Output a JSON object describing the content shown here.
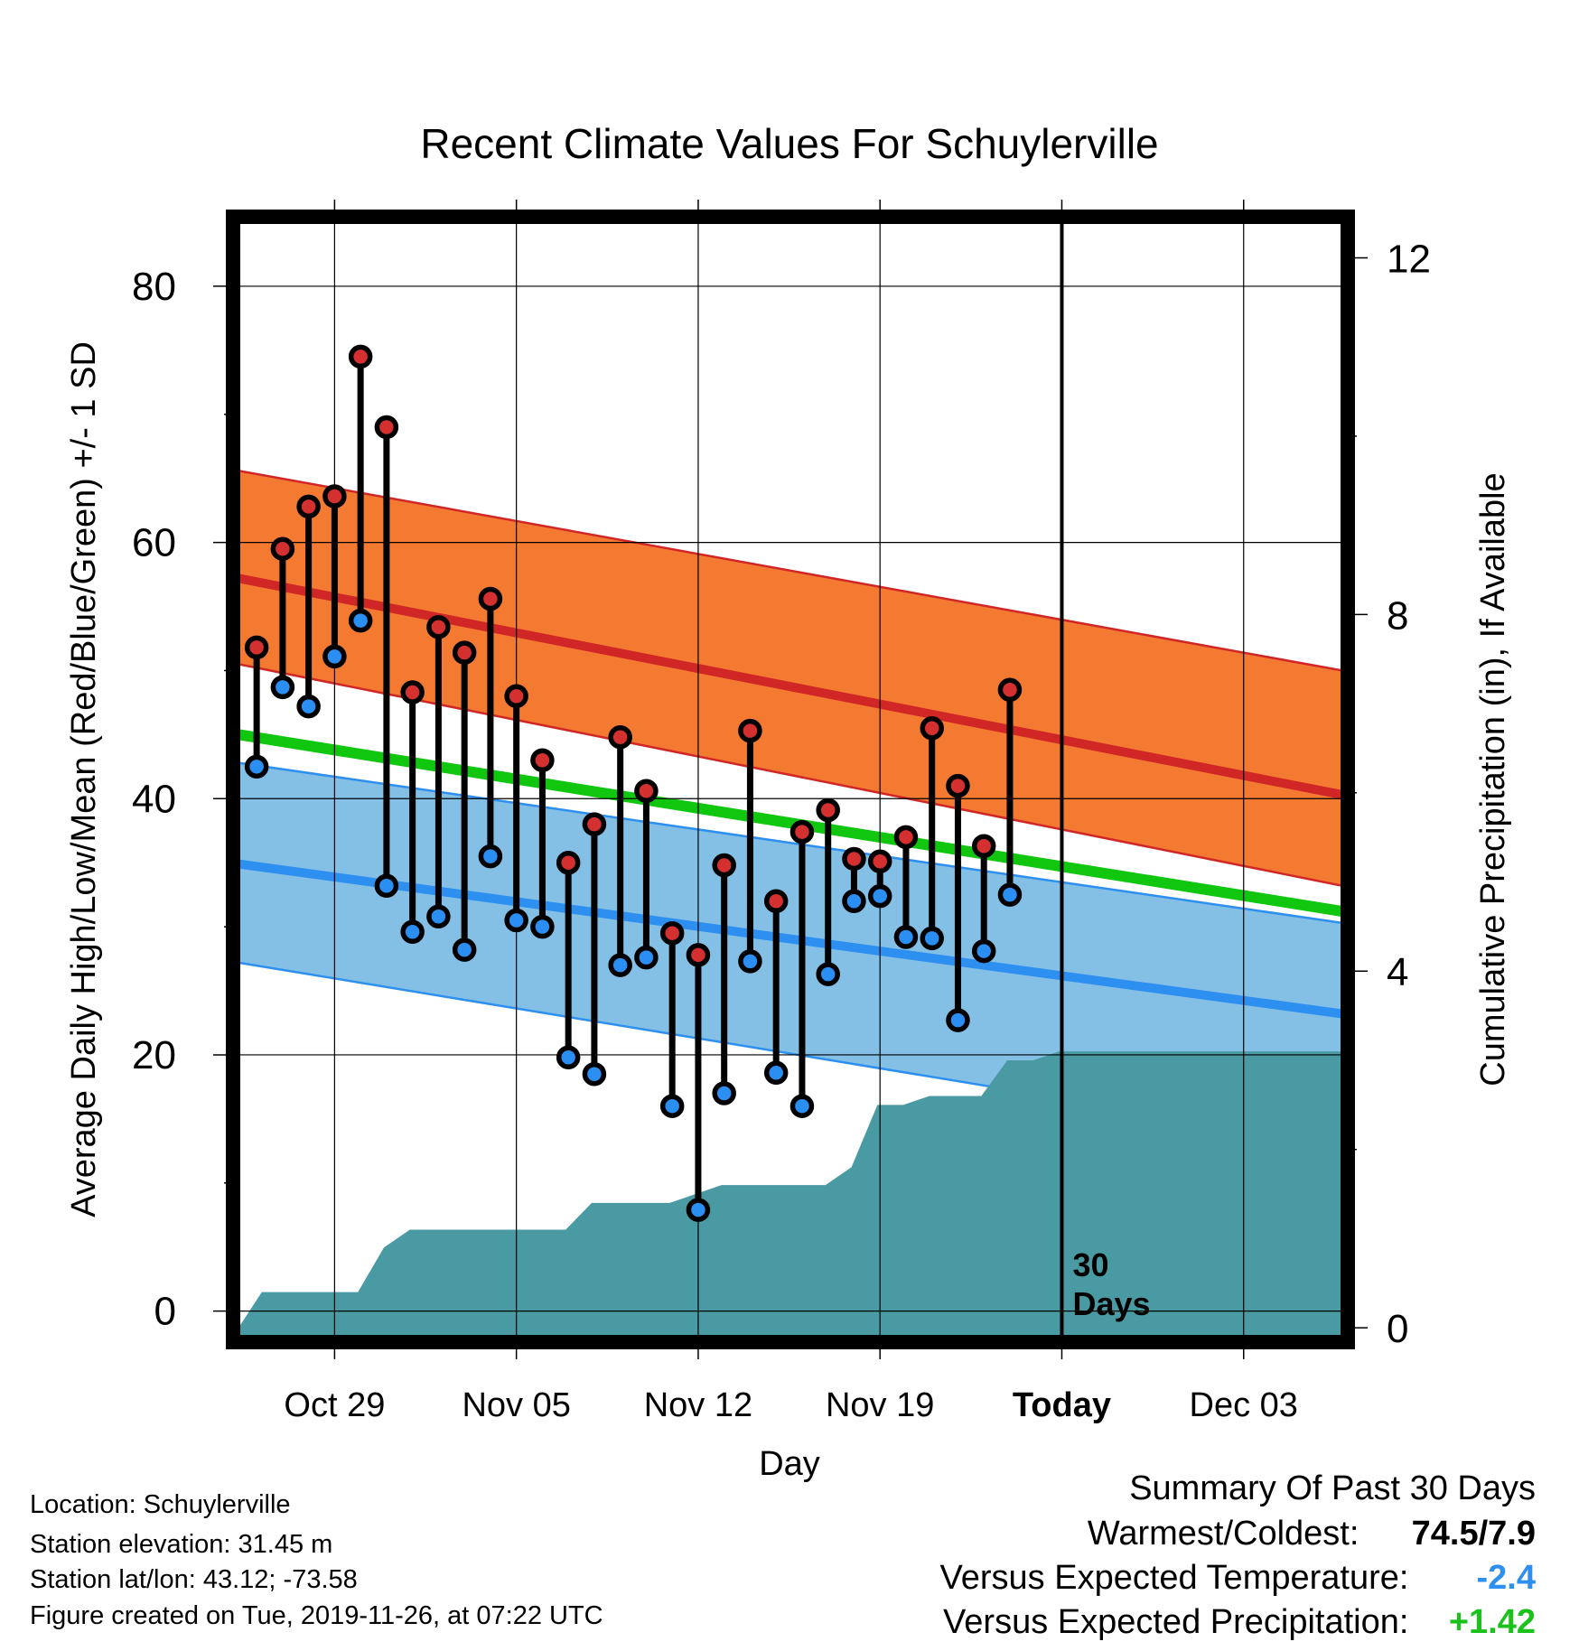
{
  "chart_data": {
    "type": "line",
    "title": "Recent Climate Values For Schuylerville",
    "xlabel": "Day",
    "ylabel": "Average Daily High/Low/Mean (Red/Blue/Green) +/- 1 SD",
    "y2label": "Cumulative Precipitation (in), If Available",
    "x_tick_labels": [
      "Oct 29",
      "Nov 05",
      "Nov 12",
      "Nov 19",
      "Today",
      "Dec 03"
    ],
    "x_tick_days": [
      3,
      10,
      17,
      24,
      31,
      38
    ],
    "x_range_days": [
      -0.7,
      41.8
    ],
    "today_day": 31,
    "today_annotation": [
      "30",
      "Days"
    ],
    "ylim": [
      -2,
      85
    ],
    "yticks": [
      0,
      20,
      40,
      60,
      80
    ],
    "y2lim": [
      -0.1,
      12.4
    ],
    "y2ticks": [
      0,
      4,
      8,
      12
    ],
    "grid": true,
    "normals": {
      "days": [
        -0.7,
        41.8
      ],
      "high_mean": [
        57.2,
        40.3
      ],
      "high_upper": [
        65.6,
        50.0
      ],
      "high_lower": [
        50.5,
        33.2
      ],
      "low_mean": [
        34.9,
        23.2
      ],
      "low_upper": [
        42.8,
        30.3
      ],
      "low_lower": [
        27.2,
        13.0
      ],
      "mean": [
        45.0,
        31.2
      ]
    },
    "days": [
      0,
      1,
      2,
      3,
      4,
      5,
      6,
      7,
      8,
      9,
      10,
      11,
      12,
      13,
      14,
      15,
      16,
      17,
      18,
      19,
      20,
      21,
      22,
      23,
      24,
      25,
      26,
      27,
      28,
      29
    ],
    "highs": [
      51.8,
      59.5,
      62.8,
      63.6,
      74.5,
      69.0,
      48.3,
      53.4,
      51.4,
      55.6,
      48.0,
      43.0,
      35.0,
      38.0,
      44.8,
      40.6,
      29.5,
      27.8,
      34.8,
      45.3,
      32.0,
      37.4,
      39.1,
      35.3,
      35.1,
      37.0,
      45.5,
      41.0,
      36.3,
      48.5
    ],
    "lows": [
      42.5,
      48.7,
      47.2,
      51.1,
      53.9,
      33.2,
      29.6,
      30.8,
      28.2,
      35.5,
      30.5,
      30.0,
      19.8,
      18.5,
      27.0,
      27.6,
      16.0,
      7.9,
      17.0,
      27.3,
      18.6,
      16.0,
      26.3,
      32.0,
      32.4,
      29.2,
      29.1,
      22.7,
      28.1,
      32.5
    ],
    "precip": {
      "days": [
        -0.7,
        0.2,
        0.9,
        1.9,
        2.9,
        3.9,
        4.9,
        5.9,
        6.9,
        7.9,
        8.9,
        9.9,
        10.9,
        11.9,
        12.9,
        13.9,
        14.9,
        15.9,
        16.9,
        17.9,
        18.9,
        19.9,
        20.9,
        21.9,
        22.9,
        23.9,
        24.9,
        25.9,
        26.9,
        27.9,
        28.9,
        29.9,
        30.9,
        35.0,
        41.8
      ],
      "values": [
        0.0,
        0.4,
        0.4,
        0.4,
        0.4,
        0.4,
        0.9,
        1.1,
        1.1,
        1.1,
        1.1,
        1.1,
        1.1,
        1.1,
        1.4,
        1.4,
        1.4,
        1.4,
        1.5,
        1.6,
        1.6,
        1.6,
        1.6,
        1.6,
        1.8,
        2.5,
        2.5,
        2.6,
        2.6,
        2.6,
        3.0,
        3.0,
        3.1,
        3.1,
        3.1
      ]
    }
  },
  "footer": {
    "location": "Location: Schuylerville",
    "elevation": "Station elevation: 31.45 m",
    "latlon": "Station lat/lon: 43.12; -73.58",
    "created": "Figure created on Tue, 2019-11-26, at 07:22 UTC"
  },
  "summary": {
    "title": "Summary Of Past 30 Days",
    "warmest_label": "Warmest/Coldest:",
    "warmest_value": "74.5/7.9",
    "temp_label": "Versus Expected Temperature:",
    "temp_value": "-2.4",
    "precip_label": "Versus Expected Precipitation:",
    "precip_value": "+1.42"
  },
  "colors": {
    "high_band": "#f47a32",
    "high_line": "#d02726",
    "low_band": "#84c0e6",
    "low_line": "#2d8ff0",
    "mean_line": "#11c60f",
    "precip": "#4a9aa3",
    "overlap": "#8c1a1a",
    "high_marker": "#d53030",
    "low_marker": "#2b8ef2",
    "temp_value": "#2d8ff0",
    "precip_value": "#1bc21b"
  }
}
